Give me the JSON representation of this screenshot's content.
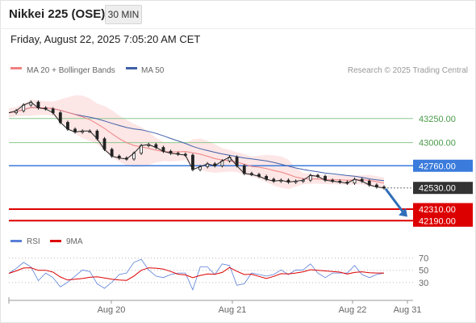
{
  "header": {
    "title": "Nikkei 225 (OSE)",
    "timeframe_label": "30 MIN",
    "datetime": "Friday, August 22, 2025 7:05:20 AM CET"
  },
  "legend": {
    "ma20_label": "MA 20 + Bollinger Bands",
    "ma50_label": "MA 50",
    "attribution": "Research © 2025 Trading Central",
    "rsi_label": "RSI",
    "rsi_ma_label": "9MA"
  },
  "colors": {
    "price": "#222222",
    "ma20": "#f08080",
    "bollinger_fill": "#fde2e2",
    "ma50": "#3f5fa8",
    "support": "#dd0000",
    "resistance_green": "#8bc88b",
    "resistance_blue": "#3a7bdc",
    "current_price": "#333333",
    "arrow": "#2f6eb8",
    "rsi": "#5a7fd8",
    "rsi_ma": "#dd0000"
  },
  "chart_data": [
    {
      "type": "line",
      "title": "Nikkei 225 (OSE)",
      "timeframe": "30 MIN",
      "x_ticks": [
        "Aug 20",
        "Aug 21",
        "Aug 22",
        "Aug 31"
      ],
      "ylim": [
        42050,
        43600
      ],
      "price_line_points": [
        [
          0,
          43310
        ],
        [
          2,
          43330
        ],
        [
          4,
          43390
        ],
        [
          6,
          43420
        ],
        [
          8,
          43360
        ],
        [
          10,
          43350
        ],
        [
          12,
          43310
        ],
        [
          14,
          43210
        ],
        [
          16,
          43140
        ],
        [
          18,
          43110
        ],
        [
          20,
          43120
        ],
        [
          22,
          43120
        ],
        [
          24,
          43040
        ],
        [
          26,
          42930
        ],
        [
          28,
          42860
        ],
        [
          30,
          42840
        ],
        [
          32,
          42830
        ],
        [
          34,
          42890
        ],
        [
          36,
          42970
        ],
        [
          38,
          42980
        ],
        [
          40,
          42950
        ],
        [
          42,
          42910
        ],
        [
          44,
          42890
        ],
        [
          46,
          42880
        ],
        [
          48,
          42870
        ],
        [
          50,
          42720
        ],
        [
          52,
          42750
        ],
        [
          54,
          42780
        ],
        [
          56,
          42760
        ],
        [
          58,
          42810
        ],
        [
          60,
          42850
        ],
        [
          62,
          42760
        ],
        [
          64,
          42680
        ],
        [
          66,
          42670
        ],
        [
          68,
          42650
        ],
        [
          70,
          42620
        ],
        [
          72,
          42600
        ],
        [
          74,
          42610
        ],
        [
          76,
          42590
        ],
        [
          78,
          42600
        ],
        [
          80,
          42610
        ],
        [
          82,
          42660
        ],
        [
          84,
          42650
        ],
        [
          86,
          42610
        ],
        [
          88,
          42600
        ],
        [
          90,
          42590
        ],
        [
          92,
          42580
        ],
        [
          94,
          42620
        ],
        [
          96,
          42600
        ],
        [
          98,
          42560
        ],
        [
          100,
          42540
        ],
        [
          102,
          42530
        ]
      ],
      "price_line_x_range": [
        0,
        102
      ],
      "series": [
        {
          "name": "MA 20 + Bollinger Bands",
          "type": "line+band"
        },
        {
          "name": "MA 50",
          "type": "line"
        }
      ],
      "horizontal_levels": [
        {
          "value": 43250.0,
          "label": "43250.00",
          "kind": "resistance"
        },
        {
          "value": 43000.0,
          "label": "43000.00",
          "kind": "resistance"
        },
        {
          "value": 42760.0,
          "label": "42760.00",
          "kind": "pivot"
        },
        {
          "value": 42530.0,
          "label": "42530.00",
          "kind": "last-price"
        },
        {
          "value": 42310.0,
          "label": "42310.00",
          "kind": "support"
        },
        {
          "value": 42190.0,
          "label": "42190.00",
          "kind": "support"
        }
      ],
      "legend_position": "top-left",
      "grid": false
    },
    {
      "type": "line",
      "panel": "RSI",
      "ylim": [
        10,
        80
      ],
      "y_ticks": [
        30,
        50,
        70
      ],
      "series": [
        {
          "name": "RSI"
        },
        {
          "name": "9MA"
        }
      ],
      "x_ticks": [
        "Aug 20",
        "Aug 21",
        "Aug 22",
        "Aug 31"
      ]
    }
  ]
}
